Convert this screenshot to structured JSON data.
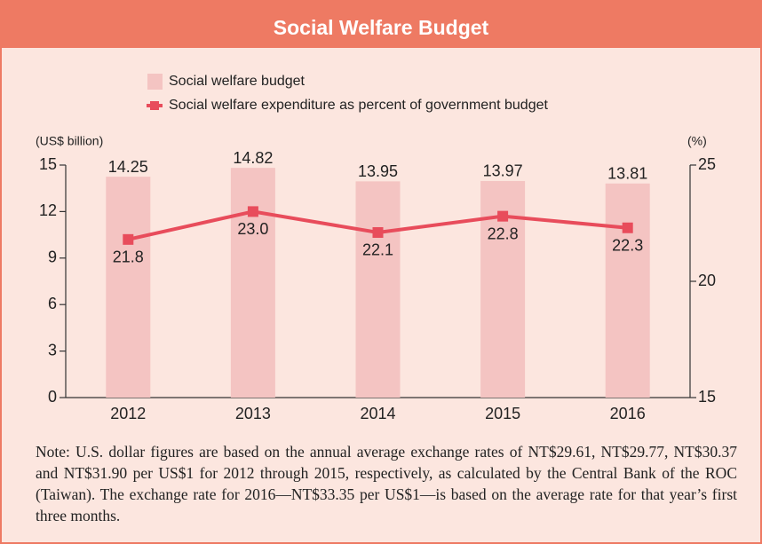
{
  "chart_data": {
    "type": "bar",
    "title": "Social Welfare Budget",
    "categories": [
      "2012",
      "2013",
      "2014",
      "2015",
      "2016"
    ],
    "series": [
      {
        "name": "Social welfare budget",
        "color": "#f4c4c2",
        "values": [
          14.25,
          14.82,
          13.95,
          13.97,
          13.81
        ]
      },
      {
        "name": "Social welfare expenditure as percent of government budget",
        "type": "line",
        "axis": "y2",
        "color": "#e84c5b",
        "values": [
          21.8,
          23.0,
          22.1,
          22.8,
          22.3
        ],
        "value_labels": [
          "21.8",
          "23.0",
          "22.1",
          "22.8",
          "22.3"
        ]
      }
    ],
    "y_label": "(US$ billion)",
    "y2_label": "(%)",
    "ylim": [
      0,
      15
    ],
    "yticks": [
      0,
      3,
      6,
      9,
      12,
      15
    ],
    "y2lim": [
      15,
      25
    ],
    "y2ticks": [
      15,
      20,
      25
    ],
    "note": "Note: U.S. dollar figures are based on the annual average exchange rates of NT$29.61, NT$29.77, NT$30.37 and NT$31.90 per US$1 for 2012 through 2015, respectively, as calculated by the Central Bank of the ROC (Taiwan). The exchange rate for 2016—NT$33.35 per US$1—is based on the average rate for that year’s first three months."
  }
}
